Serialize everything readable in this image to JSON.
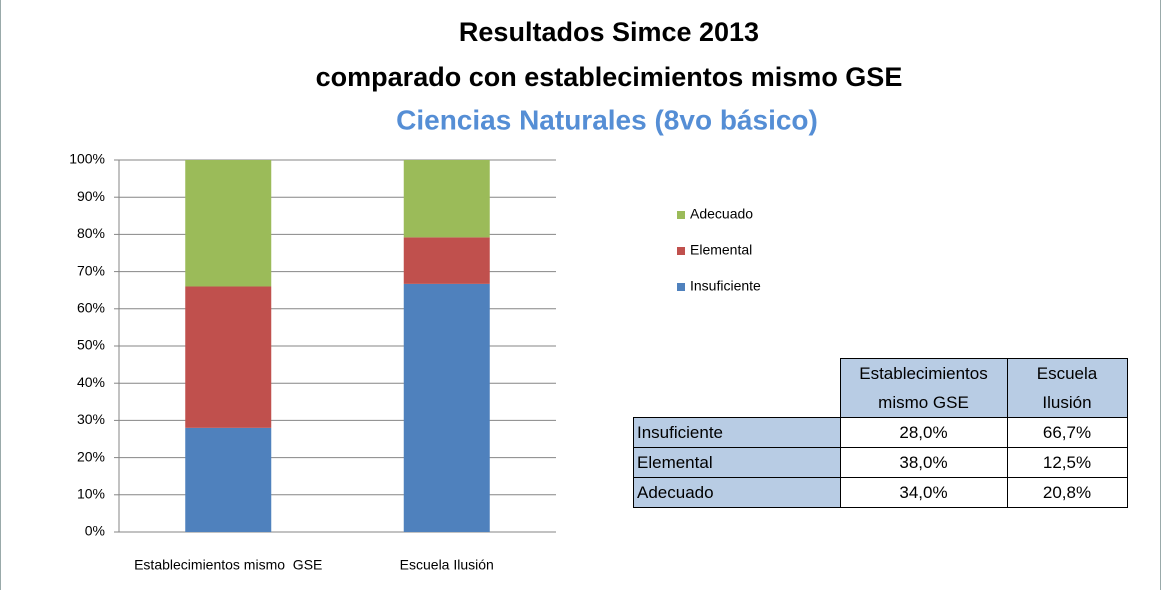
{
  "chart_data": {
    "type": "bar",
    "stacked": true,
    "title_lines": [
      "Resultados Simce 2013",
      "comparado con establecimientos mismo GSE"
    ],
    "subtitle": "Ciencias Naturales (8vo básico)",
    "categories": [
      "Establecimientos mismo  GSE",
      "Escuela Ilusión"
    ],
    "series": [
      {
        "name": "Insuficiente",
        "color": "#4f81bd",
        "values": [
          28.0,
          66.7
        ]
      },
      {
        "name": "Elemental",
        "color": "#c0504d",
        "values": [
          38.0,
          12.5
        ]
      },
      {
        "name": "Adecuado",
        "color": "#9bbb59",
        "values": [
          34.0,
          20.8
        ]
      }
    ],
    "ylim": [
      0,
      100
    ],
    "yticks": [
      {
        "value": 0,
        "label": "0%"
      },
      {
        "value": 10,
        "label": "10%"
      },
      {
        "value": 20,
        "label": "20%"
      },
      {
        "value": 30,
        "label": "30%"
      },
      {
        "value": 40,
        "label": "40%"
      },
      {
        "value": 50,
        "label": "50%"
      },
      {
        "value": 60,
        "label": "60%"
      },
      {
        "value": 70,
        "label": "70%"
      },
      {
        "value": 80,
        "label": "80%"
      },
      {
        "value": 90,
        "label": "90%"
      },
      {
        "value": 100,
        "label": "100%"
      }
    ],
    "grid": true,
    "legend": "right"
  },
  "table": {
    "columns": [
      "Establecimientos mismo GSE",
      "Escuela Ilusión"
    ],
    "rows": [
      {
        "label": "Insuficiente",
        "cells": [
          "28,0%",
          "66,7%"
        ]
      },
      {
        "label": "Elemental",
        "cells": [
          "38,0%",
          "12,5%"
        ]
      },
      {
        "label": "Adecuado",
        "cells": [
          "34,0%",
          "20,8%"
        ]
      }
    ]
  }
}
